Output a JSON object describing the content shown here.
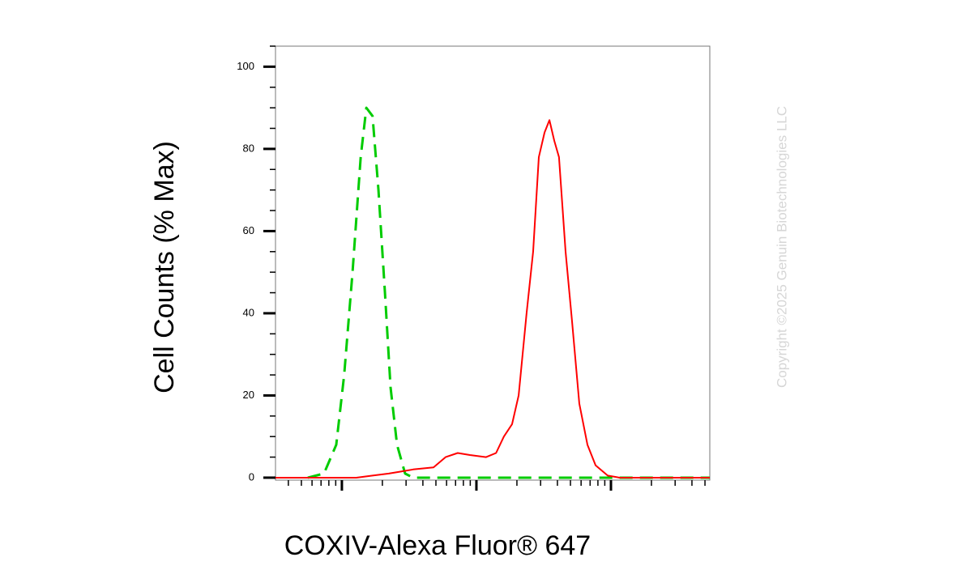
{
  "chart_data": {
    "type": "line",
    "ylabel": "Cell Counts (% Max)",
    "xlabel": "COXIV-Alexa Fluor® 647",
    "watermark": "Copyright ©2025 Genuin Biotechnologies LLC",
    "xscale": "log",
    "xlim": [
      3.21,
      5430
    ],
    "xticks": [
      10,
      100,
      1000
    ],
    "ylim": [
      -0.6,
      105
    ],
    "yticks": [
      0,
      20,
      40,
      60,
      80,
      100
    ],
    "series": [
      {
        "color": "#00cc00",
        "dashed": true,
        "x": [
          5.58,
          7.36,
          9.08,
          10.4,
          12.0,
          13.8,
          15.2,
          16.9,
          18.7,
          20.9,
          23.0,
          25.7,
          29.5,
          33.9,
          5430
        ],
        "values": [
          0,
          1,
          8,
          25,
          50,
          78,
          90,
          88,
          70,
          45,
          22,
          8,
          1,
          0,
          0
        ]
      },
      {
        "color": "#ff0000",
        "dashed": false,
        "x": [
          3.21,
          12.8,
          16.9,
          22.3,
          27.5,
          33.9,
          48.0,
          59.0,
          72.6,
          89.5,
          118,
          140,
          160,
          184,
          206,
          236,
          264,
          291,
          321,
          349,
          379,
          411,
          460,
          514,
          582,
          669,
          769,
          946,
          1160,
          5430
        ],
        "values": [
          0,
          0,
          0.5,
          1,
          1.5,
          2,
          2.5,
          5,
          6,
          5.5,
          5,
          6,
          10,
          13,
          20,
          40,
          55,
          78,
          84,
          87,
          82,
          78,
          55,
          38,
          18,
          8,
          3,
          0.5,
          0,
          0
        ]
      }
    ]
  }
}
